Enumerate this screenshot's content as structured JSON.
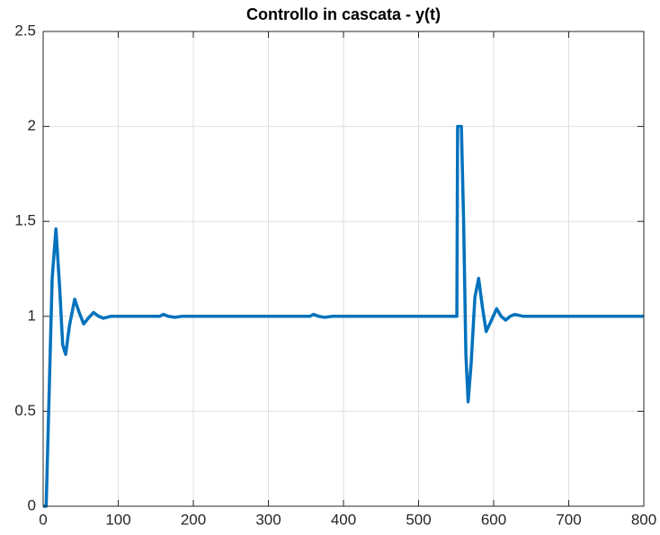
{
  "chart_data": {
    "type": "line",
    "title": "Controllo in cascata - y(t)",
    "x": [
      0,
      4,
      8,
      12,
      17,
      22,
      26,
      30,
      35,
      42,
      48,
      54,
      60,
      67,
      74,
      80,
      90,
      155,
      160,
      167,
      175,
      185,
      355,
      360,
      367,
      375,
      385,
      551,
      552,
      557,
      560,
      563,
      566,
      570,
      575,
      580,
      585,
      590,
      596,
      604,
      610,
      616,
      622,
      628,
      640,
      800
    ],
    "series": [
      {
        "name": "y(t)",
        "color": "#0072bd",
        "values": [
          0,
          0,
          0.6,
          1.2,
          1.46,
          1.15,
          0.85,
          0.8,
          0.95,
          1.09,
          1.02,
          0.96,
          0.99,
          1.02,
          1.0,
          0.99,
          1.0,
          1.0,
          1.01,
          1.0,
          0.995,
          1.0,
          1.0,
          1.01,
          1.0,
          0.995,
          1.0,
          1.0,
          2.0,
          2.0,
          1.5,
          0.8,
          0.55,
          0.75,
          1.1,
          1.2,
          1.05,
          0.92,
          0.97,
          1.04,
          1.0,
          0.98,
          1.0,
          1.01,
          1.0,
          1.0
        ]
      }
    ],
    "xlim": [
      0,
      800
    ],
    "xticks": [
      0,
      100,
      200,
      300,
      400,
      500,
      600,
      700,
      800
    ],
    "ylim": [
      0,
      2.5
    ],
    "yticks": [
      0,
      0.5,
      1,
      1.5,
      2,
      2.5
    ],
    "grid": true
  }
}
